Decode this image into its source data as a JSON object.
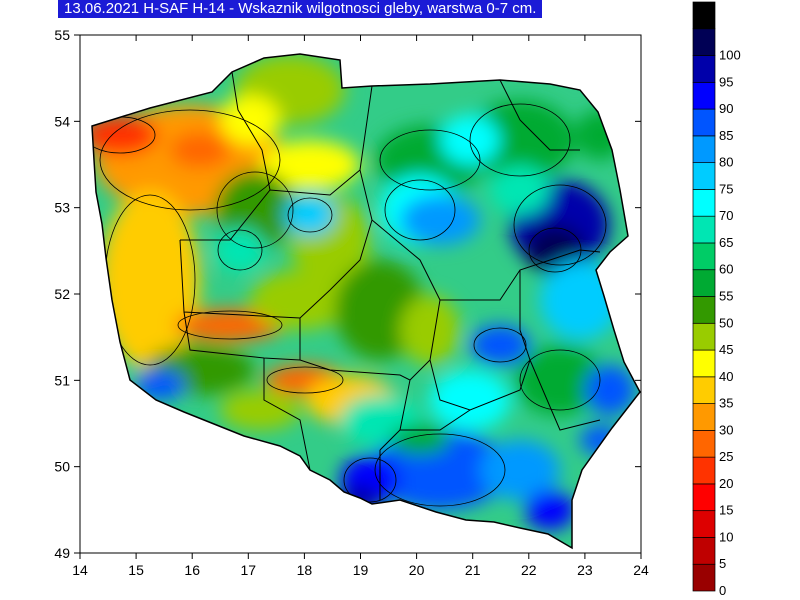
{
  "title": "13.06.2021 H-SAF H-14 - Wskaznik wilgotnosci gleby, warstwa 0-7 cm.",
  "map": {
    "lon_range": [
      14,
      24
    ],
    "lat_range": [
      49,
      55
    ],
    "lon_ticks": [
      "14",
      "15",
      "16",
      "17",
      "18",
      "19",
      "20",
      "21",
      "22",
      "23",
      "24"
    ],
    "lat_ticks": [
      "49",
      "50",
      "51",
      "52",
      "53",
      "54",
      "55"
    ]
  },
  "legend": {
    "items": [
      {
        "label": "0",
        "color": "#990000"
      },
      {
        "label": "5",
        "color": "#bf0000"
      },
      {
        "label": "10",
        "color": "#dd0000"
      },
      {
        "label": "15",
        "color": "#ff0000"
      },
      {
        "label": "20",
        "color": "#ff3300"
      },
      {
        "label": "25",
        "color": "#ff6600"
      },
      {
        "label": "30",
        "color": "#ff9900"
      },
      {
        "label": "35",
        "color": "#ffcc00"
      },
      {
        "label": "40",
        "color": "#ffff00"
      },
      {
        "label": "45",
        "color": "#99cc00"
      },
      {
        "label": "50",
        "color": "#339900"
      },
      {
        "label": "55",
        "color": "#00aa33"
      },
      {
        "label": "60",
        "color": "#00cc66"
      },
      {
        "label": "65",
        "color": "#00e6b3"
      },
      {
        "label": "70",
        "color": "#00ffff"
      },
      {
        "label": "75",
        "color": "#00ccff"
      },
      {
        "label": "80",
        "color": "#0099ff"
      },
      {
        "label": "85",
        "color": "#0055ff"
      },
      {
        "label": "90",
        "color": "#0000ff"
      },
      {
        "label": "95",
        "color": "#0000aa"
      },
      {
        "label": "100",
        "color": "#000055"
      },
      {
        "label": "",
        "color": "#000000"
      }
    ]
  }
}
